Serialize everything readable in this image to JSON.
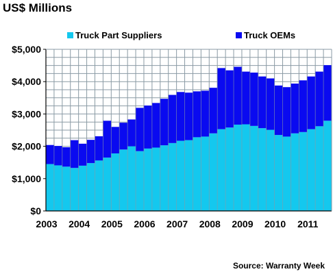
{
  "title": "US$ Millions",
  "source": "Source: Warranty Week",
  "colors": {
    "suppliers": "#14c8ee",
    "oems": "#0a0af0",
    "grid": "#8a9aa4",
    "background": "#ffffff"
  },
  "chart_data": {
    "type": "bar",
    "stacked": true,
    "ylim": [
      0,
      5000
    ],
    "yticks": [
      0,
      1000,
      2000,
      3000,
      4000,
      5000
    ],
    "ytick_labels": [
      "$0",
      "$1,000",
      "$2,000",
      "$3,000",
      "$4,000",
      "$5,000"
    ],
    "xtick_labels": [
      "2003",
      "2004",
      "2005",
      "2006",
      "2007",
      "2008",
      "2009",
      "2010",
      "2011"
    ],
    "grid": true,
    "legend_position": "top",
    "categories": [
      "2003 Q1",
      "2003 Q2",
      "2003 Q3",
      "2003 Q4",
      "2004 Q1",
      "2004 Q2",
      "2004 Q3",
      "2004 Q4",
      "2005 Q1",
      "2005 Q2",
      "2005 Q3",
      "2005 Q4",
      "2006 Q1",
      "2006 Q2",
      "2006 Q3",
      "2006 Q4",
      "2007 Q1",
      "2007 Q2",
      "2007 Q3",
      "2007 Q4",
      "2008 Q1",
      "2008 Q2",
      "2008 Q3",
      "2008 Q4",
      "2009 Q1",
      "2009 Q2",
      "2009 Q3",
      "2009 Q4",
      "2010 Q1",
      "2010 Q2",
      "2010 Q3",
      "2010 Q4",
      "2011 Q1",
      "2011 Q2",
      "2011 Q3"
    ],
    "series": [
      {
        "name": "Truck Part Suppliers",
        "color": "#14c8ee",
        "values": [
          1450,
          1410,
          1370,
          1330,
          1400,
          1480,
          1560,
          1650,
          1780,
          1900,
          2000,
          1850,
          1930,
          1960,
          2030,
          2100,
          2170,
          2190,
          2280,
          2300,
          2400,
          2530,
          2580,
          2670,
          2680,
          2630,
          2560,
          2510,
          2350,
          2300,
          2400,
          2440,
          2530,
          2620,
          2790
        ]
      },
      {
        "name": "Truck OEMs",
        "color": "#0a0af0",
        "values": [
          590,
          600,
          600,
          860,
          680,
          720,
          750,
          1140,
          820,
          830,
          830,
          1340,
          1330,
          1380,
          1440,
          1490,
          1510,
          1470,
          1420,
          1420,
          1410,
          1890,
          1770,
          1790,
          1630,
          1650,
          1600,
          1590,
          1530,
          1530,
          1540,
          1600,
          1630,
          1690,
          1720
        ]
      }
    ]
  }
}
